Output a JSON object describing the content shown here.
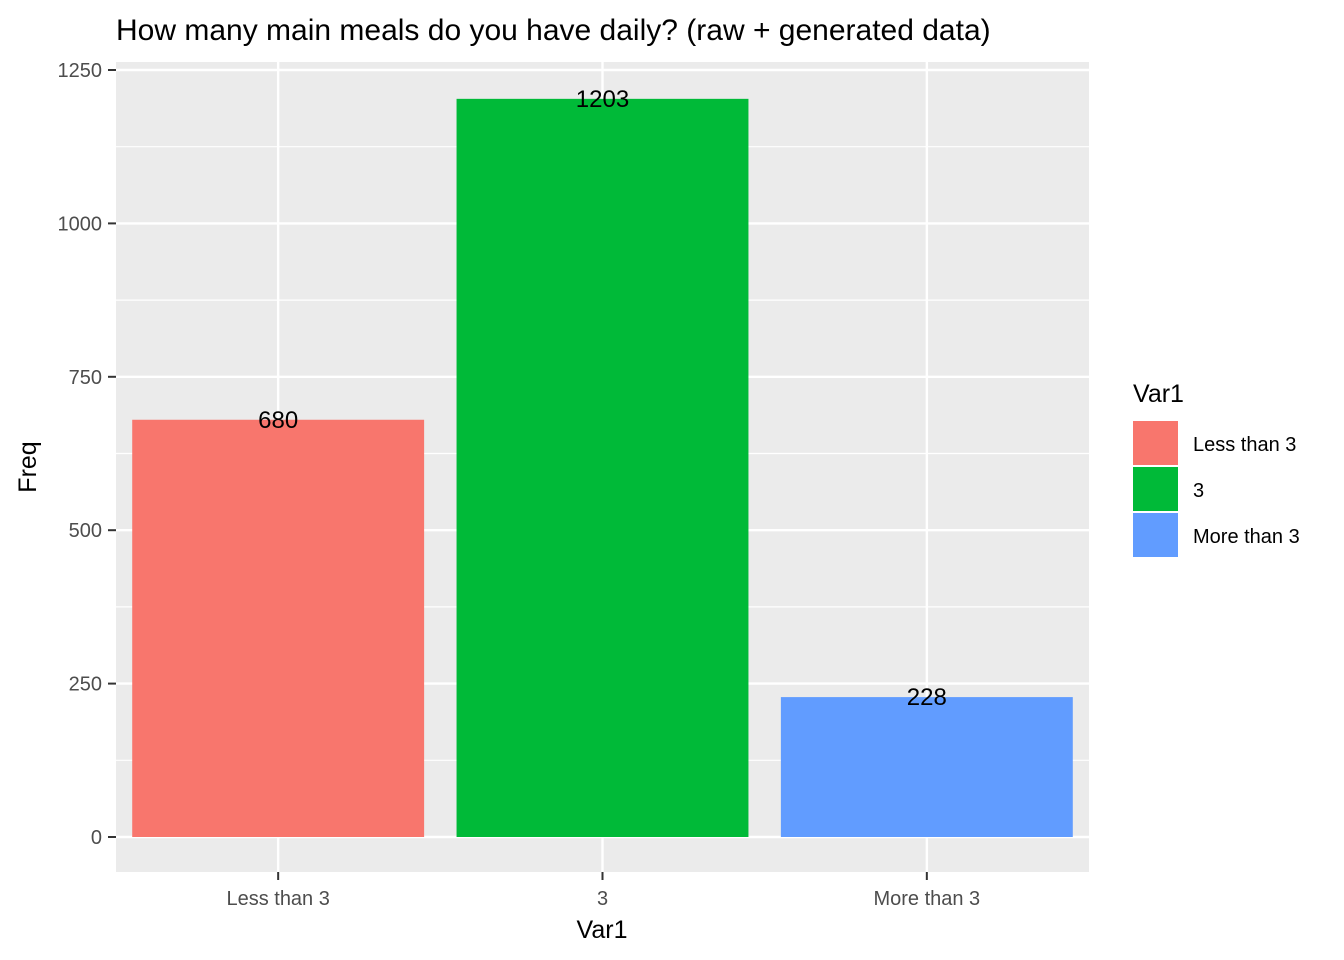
{
  "chart_data": {
    "type": "bar",
    "title": "How many main meals do you have daily? (raw + generated data)",
    "xlabel": "Var1",
    "ylabel": "Freq",
    "categories": [
      "Less than 3",
      "3",
      "More than 3"
    ],
    "values": [
      680,
      1203,
      228
    ],
    "data_labels": [
      "680",
      "1203",
      "228"
    ],
    "colors": [
      "#F8766D",
      "#00BA38",
      "#619CFF"
    ],
    "ylim": [
      0,
      1260
    ],
    "yticks": [
      0,
      250,
      500,
      750,
      1000,
      1250
    ],
    "ytick_labels": [
      "0",
      "250",
      "500",
      "750",
      "1000",
      "1250"
    ],
    "grid": true,
    "legend": {
      "title": "Var1",
      "position": "right",
      "items": [
        "Less than 3",
        "3",
        "More than 3"
      ]
    }
  }
}
